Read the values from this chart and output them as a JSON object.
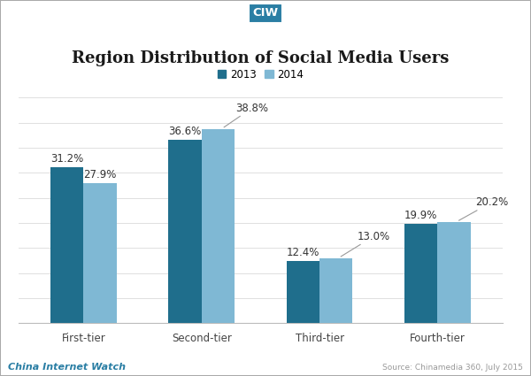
{
  "title": "Region Distribution of Social Media Users",
  "categories": [
    "First-tier",
    "Second-tier",
    "Third-tier",
    "Fourth-tier"
  ],
  "series": [
    {
      "label": "2013",
      "values": [
        31.2,
        36.6,
        12.4,
        19.9
      ],
      "color": "#1f6e8c"
    },
    {
      "label": "2014",
      "values": [
        27.9,
        38.8,
        13.0,
        20.2
      ],
      "color": "#7fb8d4"
    }
  ],
  "bar_width": 0.28,
  "ylim": [
    0,
    45
  ],
  "background_color": "#ffffff",
  "title_fontsize": 13,
  "label_fontsize": 8.5,
  "tick_fontsize": 8.5,
  "footer_left": "China Internet Watch",
  "footer_right": "Source: Chinamedia 360, July 2015",
  "ciw_label": "CIW",
  "ciw_bg_color": "#2a7ea4",
  "ciw_text_color": "#ffffff",
  "footer_left_color": "#2a7ea4",
  "footer_right_color": "#999999",
  "border_color": "#aaaaaa"
}
